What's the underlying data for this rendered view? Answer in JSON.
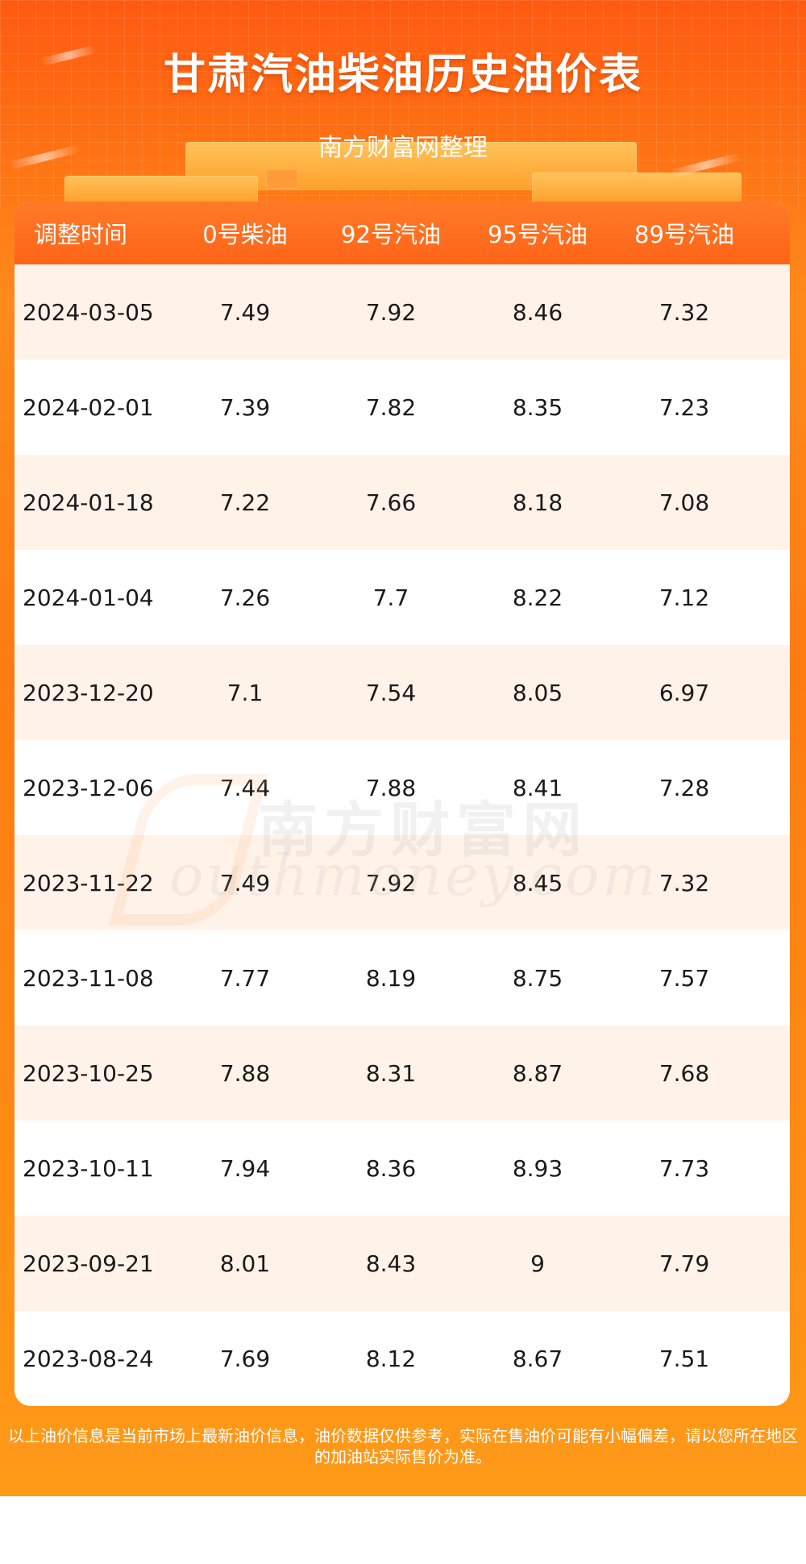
{
  "header": {
    "title": "甘肃汽油柴油历史油价表",
    "subtitle": "南方财富网整理"
  },
  "table": {
    "columns": [
      "调整时间",
      "0号柴油",
      "92号汽油",
      "95号汽油",
      "89号汽油"
    ],
    "rows": [
      [
        "2024-03-05",
        "7.49",
        "7.92",
        "8.46",
        "7.32"
      ],
      [
        "2024-02-01",
        "7.39",
        "7.82",
        "8.35",
        "7.23"
      ],
      [
        "2024-01-18",
        "7.22",
        "7.66",
        "8.18",
        "7.08"
      ],
      [
        "2024-01-04",
        "7.26",
        "7.7",
        "8.22",
        "7.12"
      ],
      [
        "2023-12-20",
        "7.1",
        "7.54",
        "8.05",
        "6.97"
      ],
      [
        "2023-12-06",
        "7.44",
        "7.88",
        "8.41",
        "7.28"
      ],
      [
        "2023-11-22",
        "7.49",
        "7.92",
        "8.45",
        "7.32"
      ],
      [
        "2023-11-08",
        "7.77",
        "8.19",
        "8.75",
        "7.57"
      ],
      [
        "2023-10-25",
        "7.88",
        "8.31",
        "8.87",
        "7.68"
      ],
      [
        "2023-10-11",
        "7.94",
        "8.36",
        "8.93",
        "7.73"
      ],
      [
        "2023-09-21",
        "8.01",
        "8.43",
        "9",
        "7.79"
      ],
      [
        "2023-08-24",
        "7.69",
        "8.12",
        "8.67",
        "7.51"
      ]
    ]
  },
  "watermark": {
    "cn": "南方财富网",
    "en": "outhmoney.com"
  },
  "footer": {
    "note": "以上油价信息是当前市场上最新油价信息，油价数据仅供参考，实际在售油价可能有小幅偏差，请以您所在地区的加油站实际售价为准。"
  },
  "colors": {
    "header_orange": "#ff6418",
    "row_tint": "#fff2e8",
    "text": "#1a1a1a"
  }
}
